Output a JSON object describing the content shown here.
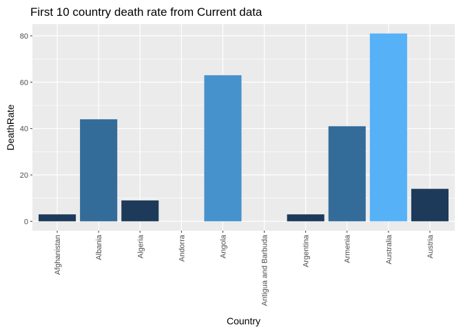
{
  "chart_data": {
    "type": "bar",
    "title": "First 10 country death rate from Current data",
    "xlabel": "Country",
    "ylabel": "DeathRate",
    "categories": [
      "Afghanistan",
      "Albania",
      "Algeria",
      "Andorra",
      "Angola",
      "Antigua and Barbuda",
      "Argentina",
      "Armenia",
      "Australia",
      "Austria"
    ],
    "values": [
      3,
      44,
      9,
      0,
      63,
      0,
      3,
      41,
      81,
      14
    ],
    "bar_colors": [
      "#1D3A5A",
      "#336B99",
      "#1D3A5A",
      "#1D3A5A",
      "#4692CC",
      "#1D3A5A",
      "#1D3A5A",
      "#336B99",
      "#56B1F7",
      "#1D3A5A"
    ],
    "ylim": [
      -4.05,
      85.05
    ],
    "yticks": [
      0,
      20,
      40,
      60,
      80
    ],
    "grid": true,
    "legend": "none",
    "panel_background": "#EBEBEB",
    "grid_color": "#FFFFFF"
  }
}
